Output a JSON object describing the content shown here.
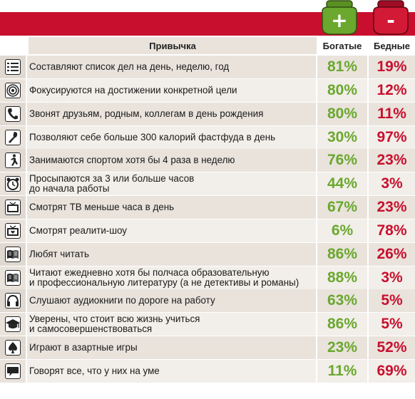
{
  "header": {
    "habit_col": "Привычка",
    "rich_col": "Богатые",
    "poor_col": "Бедные",
    "rich_symbol": "+",
    "poor_symbol": "-"
  },
  "colors": {
    "accent_red": "#c8102e",
    "rich_green": "#6aa82e",
    "row_bg": "#e9e3dc"
  },
  "rows": [
    {
      "icon": "list-icon",
      "habit": "Составляют список дел на день, неделю, год",
      "rich": "81%",
      "poor": "19%"
    },
    {
      "icon": "target-icon",
      "habit": "Фокусируются на достижении конкретной цели",
      "rich": "80%",
      "poor": "12%"
    },
    {
      "icon": "phone-icon",
      "habit": "Звонят друзьям, родным, коллегам в день рождения",
      "rich": "80%",
      "poor": "11%"
    },
    {
      "icon": "fork-icon",
      "habit": "Позволяют себе больше 300 калорий фастфуда в день",
      "rich": "30%",
      "poor": "97%"
    },
    {
      "icon": "runner-icon",
      "habit": "Занимаются спортом хотя бы 4 раза в неделю",
      "rich": "76%",
      "poor": "23%"
    },
    {
      "icon": "alarm-clock-icon",
      "habit": "Просыпаются за 3 или больше часов\nдо начала работы",
      "rich": "44%",
      "poor": "3%"
    },
    {
      "icon": "tv-icon",
      "habit": "Смотрят ТВ меньше часа в день",
      "rich": "67%",
      "poor": "23%"
    },
    {
      "icon": "tv-heart-icon",
      "habit": "Смотрят реалити-шоу",
      "rich": "6%",
      "poor": "78%"
    },
    {
      "icon": "book-icon",
      "habit": "Любят читать",
      "rich": "86%",
      "poor": "26%"
    },
    {
      "icon": "book-icon",
      "habit": "Читают ежедневно хотя бы полчаса образовательную\nи профессиональную литературу (а не детективы и романы)",
      "rich": "88%",
      "poor": "3%"
    },
    {
      "icon": "headphones-icon",
      "habit": "Слушают аудиокниги по дороге на работу",
      "rich": "63%",
      "poor": "5%"
    },
    {
      "icon": "graduation-cap-icon",
      "habit": "Уверены, что стоит всю жизнь учиться\nи самосовершенствоваться",
      "rich": "86%",
      "poor": "5%"
    },
    {
      "icon": "spade-icon",
      "habit": "Играют в азартные игры",
      "rich": "23%",
      "poor": "52%"
    },
    {
      "icon": "speech-bubble-icon",
      "habit": "Говорят все, что у них на уме",
      "rich": "11%",
      "poor": "69%"
    }
  ],
  "chart_data": {
    "type": "table",
    "columns": [
      "Привычка",
      "Богатые",
      "Бедные"
    ],
    "categories": [
      "Составляют список дел на день, неделю, год",
      "Фокусируются на достижении конкретной цели",
      "Звонят друзьям, родным, коллегам в день рождения",
      "Позволяют себе больше 300 калорий фастфуда в день",
      "Занимаются спортом хотя бы 4 раза в неделю",
      "Просыпаются за 3 или больше часов до начала работы",
      "Смотрят ТВ меньше часа в день",
      "Смотрят реалити-шоу",
      "Любят читать",
      "Читают ежедневно хотя бы полчаса образовательную и профессиональную литературу (а не детективы и романы)",
      "Слушают аудиокниги по дороге на работу",
      "Уверены, что стоит всю жизнь учиться и самосовершенствоваться",
      "Играют в азартные игры",
      "Говорят все, что у них на уме"
    ],
    "series": [
      {
        "name": "Богатые",
        "values": [
          81,
          80,
          80,
          30,
          76,
          44,
          67,
          6,
          86,
          88,
          63,
          86,
          23,
          11
        ]
      },
      {
        "name": "Бедные",
        "values": [
          19,
          12,
          11,
          97,
          23,
          3,
          23,
          78,
          26,
          3,
          5,
          5,
          52,
          69
        ]
      }
    ]
  }
}
